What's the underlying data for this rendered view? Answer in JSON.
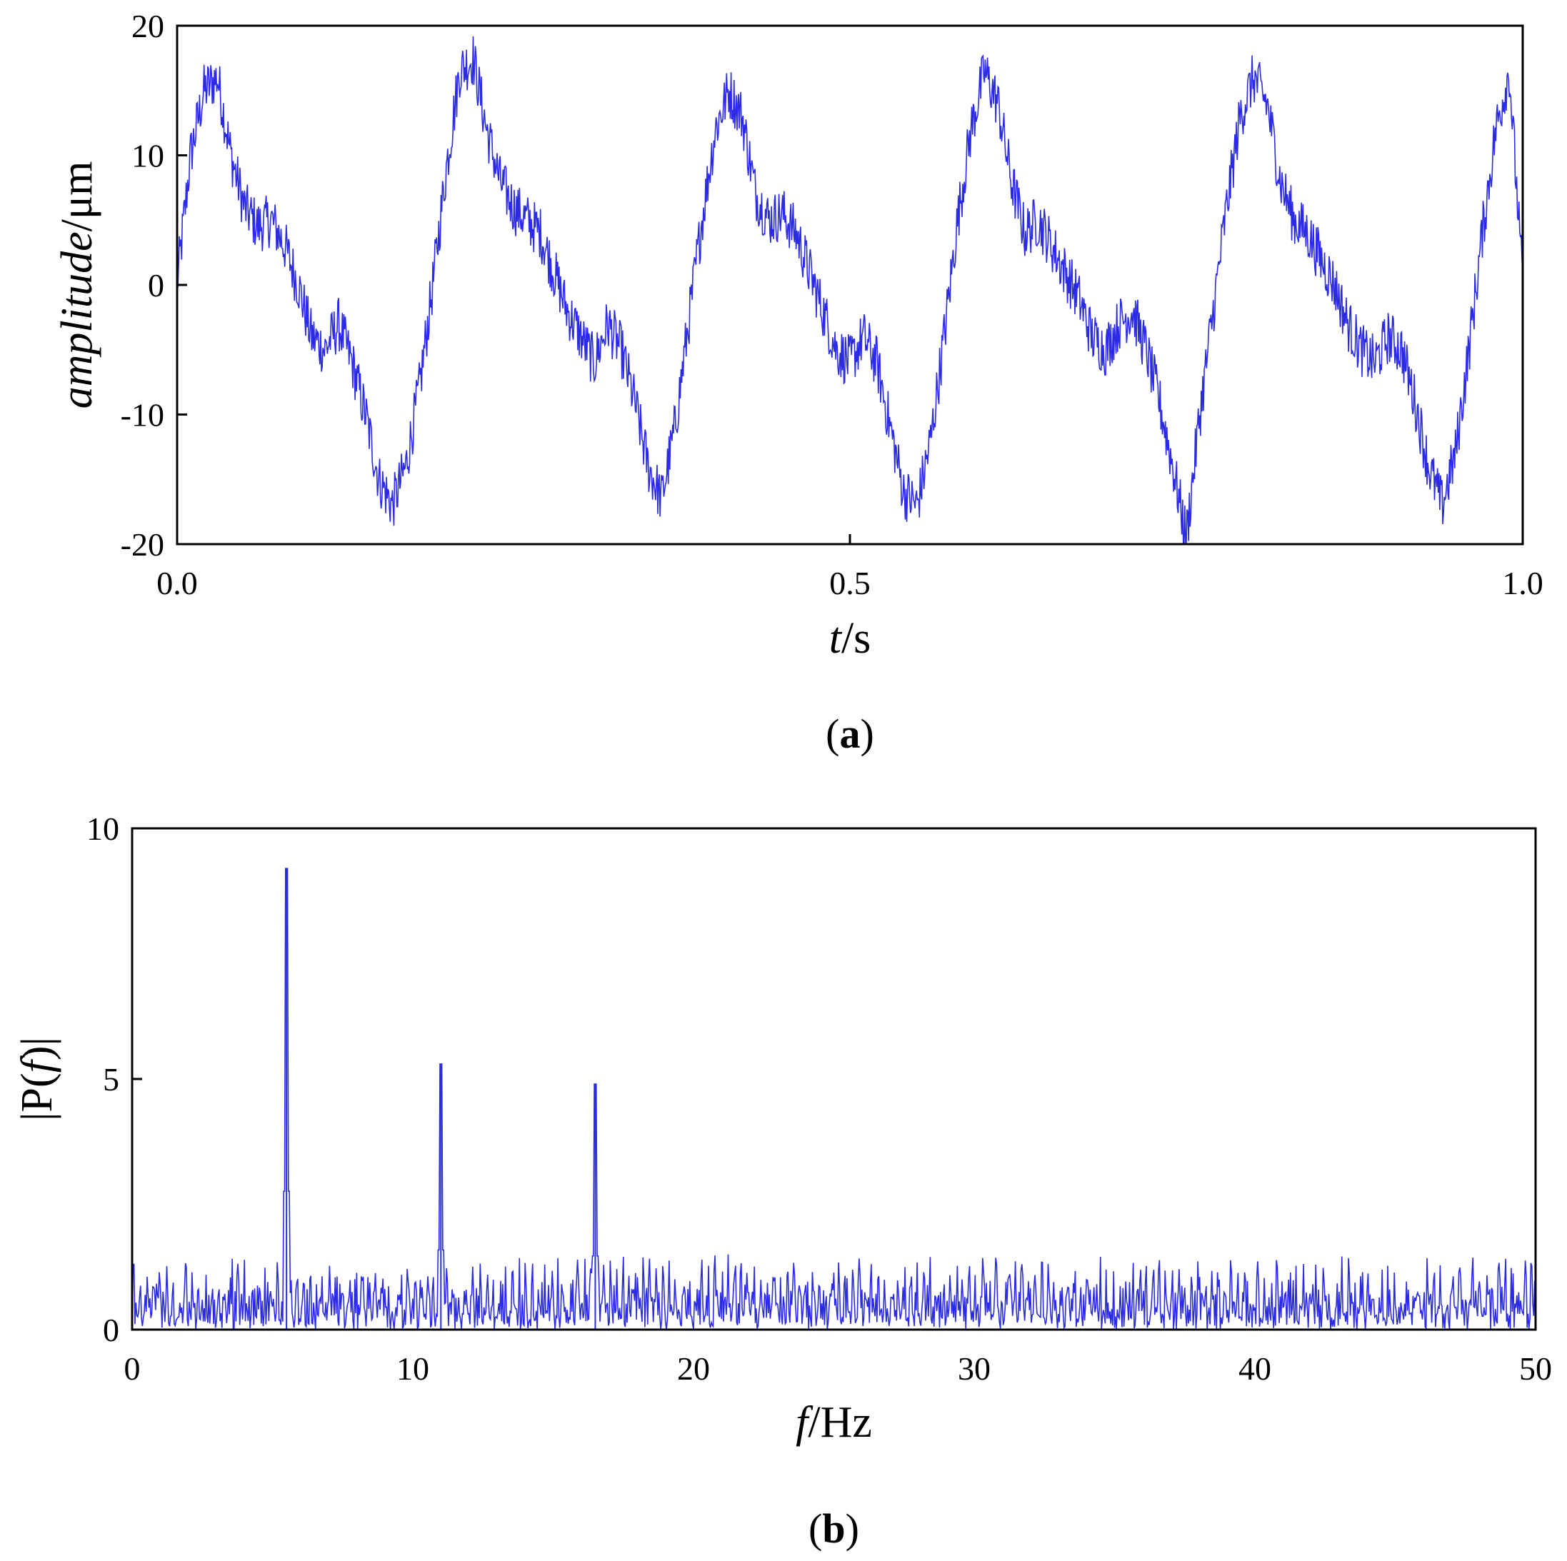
{
  "colors": {
    "line": "#2b2be6",
    "axis": "#000000",
    "background": "#ffffff"
  },
  "chart_data": [
    {
      "type": "line",
      "panel_label": "a",
      "ylabel_italic": "amplitude",
      "ylabel_unit": "/μm",
      "xlabel_italic": "t",
      "xlabel_unit": "/s",
      "xlim": [
        0.0,
        1.0
      ],
      "ylim": [
        -20,
        20
      ],
      "xticks": [
        0.0,
        0.5,
        1.0
      ],
      "xtick_labels": [
        "0.0",
        "0.5",
        "1.0"
      ],
      "yticks": [
        20,
        10,
        0,
        -10,
        -20
      ],
      "ytick_labels": [
        "20",
        "10",
        "0",
        "-10",
        "-20"
      ],
      "grid": false,
      "legend": "none",
      "series": [
        {
          "x": [
            0.0,
            0.01,
            0.02,
            0.03,
            0.04,
            0.05,
            0.06,
            0.07,
            0.08,
            0.09,
            0.1,
            0.11,
            0.12,
            0.13,
            0.14,
            0.15,
            0.16,
            0.17,
            0.18,
            0.19,
            0.2,
            0.21,
            0.22,
            0.23,
            0.24,
            0.25,
            0.26,
            0.27,
            0.28,
            0.29,
            0.3,
            0.31,
            0.32,
            0.33,
            0.34,
            0.35,
            0.36,
            0.37,
            0.38,
            0.39,
            0.4,
            0.41,
            0.42,
            0.43,
            0.44,
            0.45,
            0.46,
            0.47,
            0.48,
            0.49,
            0.5,
            0.51,
            0.52,
            0.53,
            0.54,
            0.55,
            0.56,
            0.57,
            0.58,
            0.59,
            0.6,
            0.61,
            0.62,
            0.63,
            0.64,
            0.65,
            0.66,
            0.67,
            0.68,
            0.69,
            0.7,
            0.71,
            0.72,
            0.73,
            0.74,
            0.75,
            0.76,
            0.77,
            0.78,
            0.79,
            0.8,
            0.81,
            0.82,
            0.83,
            0.84,
            0.85,
            0.86,
            0.87,
            0.88,
            0.89,
            0.9,
            0.91,
            0.92,
            0.93,
            0.94,
            0.95,
            0.96,
            0.97,
            0.98,
            0.99,
            1.0
          ],
          "y": [
            0.0,
            10.0,
            15.0,
            16.0,
            10.0,
            6.0,
            4.5,
            5.0,
            3.0,
            0.0,
            -4.0,
            -5.0,
            -3.0,
            -6.0,
            -10.0,
            -15.0,
            -17.0,
            -14.0,
            -8.0,
            0.0,
            9.0,
            16.5,
            17.5,
            12.0,
            8.0,
            6.0,
            5.0,
            4.0,
            1.0,
            -2.0,
            -4.0,
            -6.0,
            -3.0,
            -5.0,
            -9.0,
            -14.0,
            -16.5,
            -11.0,
            -3.0,
            5.0,
            12.0,
            15.0,
            13.0,
            7.0,
            5.0,
            5.5,
            4.0,
            1.0,
            -2.0,
            -5.0,
            -6.0,
            -4.0,
            -6.0,
            -11.0,
            -16.0,
            -17.0,
            -12.0,
            -4.0,
            5.0,
            12.0,
            16.5,
            14.0,
            8.0,
            4.0,
            5.0,
            3.0,
            1.0,
            -1.0,
            -4.0,
            -5.0,
            -3.0,
            -2.0,
            -5.0,
            -9.0,
            -14.0,
            -19.5,
            -10.0,
            -2.0,
            6.0,
            13.0,
            16.0,
            14.0,
            8.0,
            5.0,
            4.0,
            2.0,
            0.0,
            -3.0,
            -5.0,
            -6.0,
            -4.0,
            -5.0,
            -9.0,
            -14.0,
            -17.0,
            -13.0,
            -5.0,
            4.0,
            12.0,
            16.5,
            0.0
          ]
        }
      ]
    },
    {
      "type": "line",
      "panel_label": "b",
      "ylabel_text": "|P(",
      "ylabel_italic": "f",
      "ylabel_end": ")|",
      "xlabel_italic": "f",
      "xlabel_unit": "/Hz",
      "xlim": [
        0,
        50
      ],
      "ylim": [
        0,
        10
      ],
      "xticks": [
        0,
        10,
        20,
        30,
        40,
        50
      ],
      "xtick_labels": [
        "0",
        "10",
        "20",
        "30",
        "40",
        "50"
      ],
      "yticks": [
        10,
        5,
        0
      ],
      "ytick_labels": [
        "10",
        "5",
        "0"
      ],
      "grid": false,
      "legend": "none",
      "peaks": [
        {
          "x": 5.5,
          "y": 9.2
        },
        {
          "x": 11.0,
          "y": 5.3
        },
        {
          "x": 16.5,
          "y": 4.9
        }
      ],
      "noise_floor": [
        0.0,
        1.5
      ]
    }
  ]
}
